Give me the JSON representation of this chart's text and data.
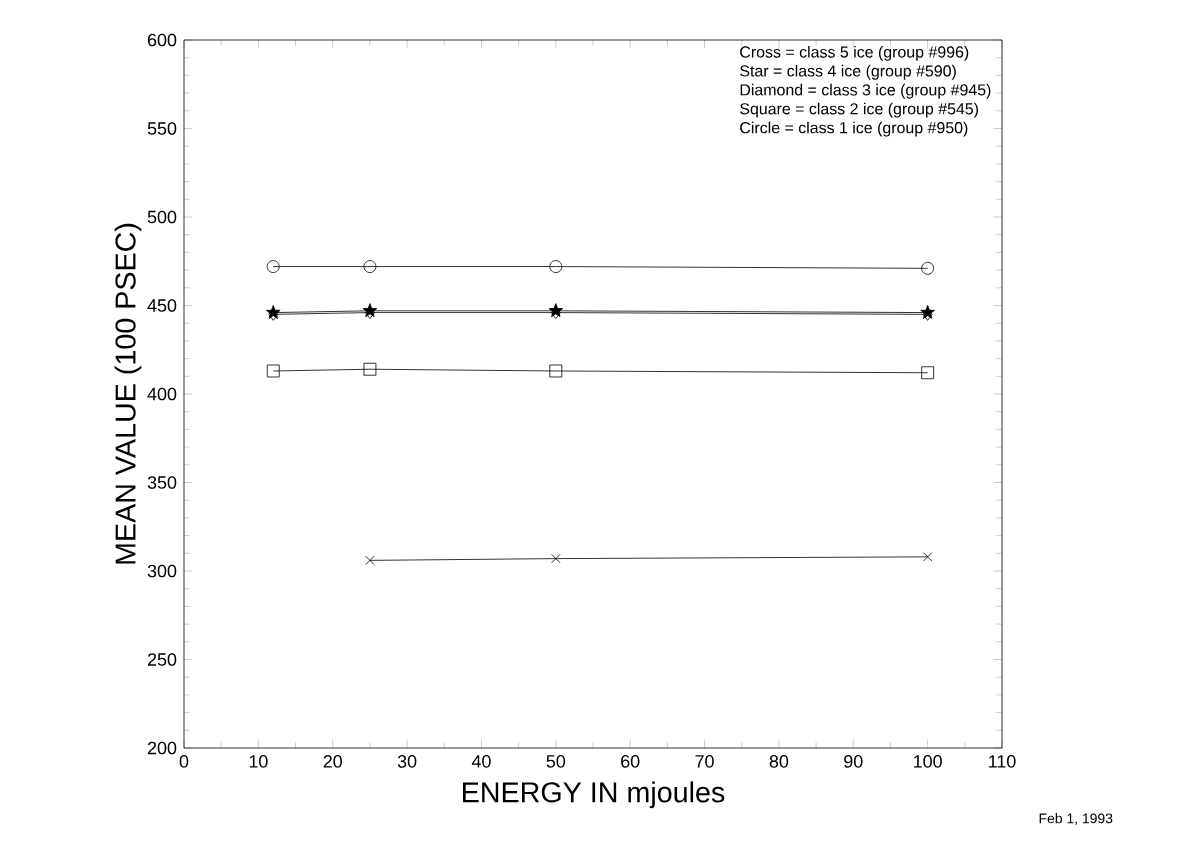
{
  "chart_data": {
    "type": "line",
    "xlabel": "ENERGY IN mjoules",
    "ylabel": "MEAN VALUE  (100 PSEC)",
    "xlim": [
      0,
      110
    ],
    "xticks": [
      0,
      10,
      20,
      30,
      40,
      50,
      60,
      70,
      80,
      90,
      100,
      110
    ],
    "ylim": [
      200,
      600
    ],
    "yticks": [
      200,
      250,
      300,
      350,
      400,
      450,
      500,
      550,
      600
    ],
    "grid": false,
    "line_style": "solid",
    "series": [
      {
        "color": "#000000",
        "marker": "circle",
        "x": [
          12,
          25,
          50,
          100
        ],
        "values": [
          472,
          472,
          472,
          471
        ]
      },
      {
        "color": "#000000",
        "marker": "star",
        "x": [
          12,
          25,
          50,
          100
        ],
        "values": [
          446,
          447,
          447,
          446
        ]
      },
      {
        "color": "#000000",
        "marker": "diamond",
        "x": [
          12,
          25,
          50,
          100
        ],
        "values": [
          445,
          446,
          446,
          445
        ]
      },
      {
        "color": "#000000",
        "marker": "square",
        "x": [
          12,
          25,
          50,
          100
        ],
        "values": [
          413,
          414,
          413,
          412
        ]
      },
      {
        "color": "#000000",
        "marker": "cross",
        "x": [
          25,
          50,
          100
        ],
        "values": [
          306,
          307,
          308
        ]
      }
    ],
    "annotations": [
      "Cross = class 5 ice (group #996)",
      "Star = class 4 ice (group #590)",
      "Diamond = class 3 ice (group #945)",
      "Square = class 2 ice (group #545)",
      "Circle = class 1 ice (group #950)",
      "Feb 1, 1993"
    ]
  }
}
